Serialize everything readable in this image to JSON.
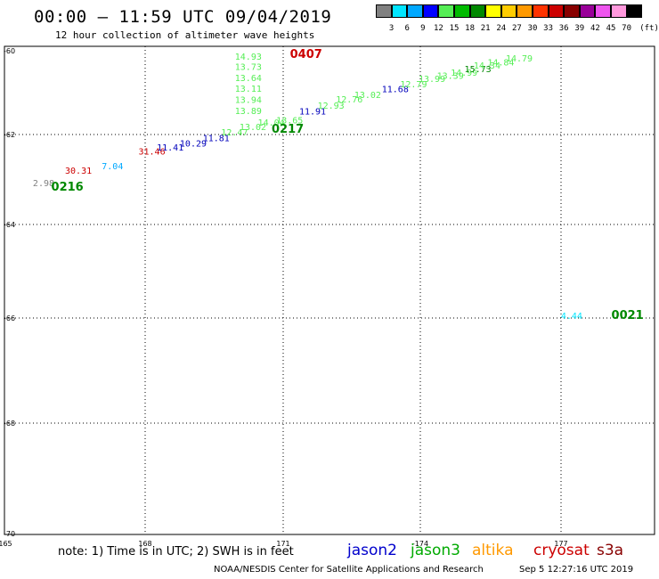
{
  "header": {
    "title": "00:00 – 11:59 UTC 09/04/2019",
    "subtitle": "12 hour collection of altimeter wave heights"
  },
  "colorbar": {
    "unit": "(ft)",
    "colors": [
      "#808080",
      "#00e5ff",
      "#00a8ff",
      "#0000ff",
      "#55ee55",
      "#00bb00",
      "#008800",
      "#ffff00",
      "#ffcc00",
      "#ff9900",
      "#ff3300",
      "#cc0000",
      "#880000",
      "#990099",
      "#ee55ee",
      "#ff99dd",
      "#000000"
    ],
    "labels": [
      "3",
      "6",
      "9",
      "12",
      "15",
      "18",
      "21",
      "24",
      "27",
      "30",
      "33",
      "36",
      "39",
      "42",
      "45",
      "70"
    ]
  },
  "map": {
    "lat_labels": [
      "-60",
      "-62",
      "-64",
      "-66",
      "-68",
      "-70"
    ],
    "lon_labels": [
      "165",
      "168",
      "171",
      "-174",
      "177"
    ],
    "points": [
      {
        "text": "2.98",
        "color": "#808080",
        "lon": 165.6,
        "lat": -62.8
      },
      {
        "text": "30.31",
        "color": "#cc0000",
        "lon": 166.3,
        "lat": -62.55
      },
      {
        "text": "7.04",
        "color": "#00a8ff",
        "lon": 167.1,
        "lat": -62.45
      },
      {
        "text": "31.46",
        "color": "#cc0000",
        "lon": 167.9,
        "lat": -62.15
      },
      {
        "text": "11.41",
        "color": "#0000bb",
        "lon": 168.3,
        "lat": -62.07
      },
      {
        "text": "10.29",
        "color": "#0000bb",
        "lon": 168.8,
        "lat": -61.98
      },
      {
        "text": "11.81",
        "color": "#0000bb",
        "lon": 169.3,
        "lat": -61.87
      },
      {
        "text": "12.47",
        "color": "#55ee55",
        "lon": 169.7,
        "lat": -61.75
      },
      {
        "text": "13.02",
        "color": "#55ee55",
        "lon": 170.1,
        "lat": -61.64
      },
      {
        "text": "14.04",
        "color": "#55ee55",
        "lon": 170.5,
        "lat": -61.55
      },
      {
        "text": "13.65",
        "color": "#55ee55",
        "lon": 170.9,
        "lat": -61.5
      },
      {
        "text": "11.91",
        "color": "#0000bb",
        "lon": 171.4,
        "lat": -61.32
      },
      {
        "text": "12.93",
        "color": "#55ee55",
        "lon": 171.8,
        "lat": -61.2
      },
      {
        "text": "12.76",
        "color": "#55ee55",
        "lon": 172.2,
        "lat": -61.07
      },
      {
        "text": "13.02",
        "color": "#55ee55",
        "lon": 172.6,
        "lat": -60.98
      },
      {
        "text": "11.68",
        "color": "#0000bb",
        "lon": 173.2,
        "lat": -60.86
      },
      {
        "text": "12.79",
        "color": "#55ee55",
        "lon": 173.6,
        "lat": -60.76
      },
      {
        "text": "13.99",
        "color": "#55ee55",
        "lon": 174.0,
        "lat": -60.65
      },
      {
        "text": "13.39",
        "color": "#55ee55",
        "lon": 174.4,
        "lat": -60.58
      },
      {
        "text": "14.99",
        "color": "#55ee55",
        "lon": 174.7,
        "lat": -60.52
      },
      {
        "text": "15.73",
        "color": "#008800",
        "lon": 175.0,
        "lat": -60.44
      },
      {
        "text": "14.34",
        "color": "#55ee55",
        "lon": 175.2,
        "lat": -60.37
      },
      {
        "text": "14.84",
        "color": "#55ee55",
        "lon": 175.5,
        "lat": -60.3
      },
      {
        "text": "14.79",
        "color": "#55ee55",
        "lon": 175.9,
        "lat": -60.22
      },
      {
        "text": "14.93",
        "color": "#55ee55",
        "lon": 170.0,
        "lat": -60.18
      },
      {
        "text": "13.73",
        "color": "#55ee55",
        "lon": 170.0,
        "lat": -60.4
      },
      {
        "text": "13.64",
        "color": "#55ee55",
        "lon": 170.0,
        "lat": -60.63
      },
      {
        "text": "13.11",
        "color": "#55ee55",
        "lon": 170.0,
        "lat": -60.85
      },
      {
        "text": "13.94",
        "color": "#55ee55",
        "lon": 170.0,
        "lat": -61.08
      },
      {
        "text": "13.89",
        "color": "#55ee55",
        "lon": 170.0,
        "lat": -61.31
      },
      {
        "text": "4.44",
        "color": "#00e5ff",
        "lon": 177.1,
        "lat": -65.55
      },
      {
        "text": "0216",
        "color": "#008800",
        "lon": 166.0,
        "lat": -62.9,
        "bold": true
      },
      {
        "text": "0217",
        "color": "#008800",
        "lon": 170.8,
        "lat": -61.7,
        "bold": true
      },
      {
        "text": "0407",
        "color": "#cc0000",
        "lon": 171.2,
        "lat": -60.15,
        "bold": true
      },
      {
        "text": "0021",
        "color": "#008800",
        "lon": 178.2,
        "lat": -65.55,
        "bold": true
      }
    ]
  },
  "footer": {
    "note": "note: 1) Time is in UTC; 2) SWH is in feet",
    "satellites": [
      {
        "name": "jason2",
        "color": "#0000cc"
      },
      {
        "name": "jason3",
        "color": "#00aa00"
      },
      {
        "name": "altika",
        "color": "#ff9900"
      },
      {
        "name": "cryosat",
        "color": "#cc0000"
      },
      {
        "name": "s3a",
        "color": "#880000"
      }
    ],
    "credit": "NOAA/NESDIS Center for Satellite Applications and Research",
    "timestamp": "Sep  5 12:27:16 UTC 2019"
  }
}
